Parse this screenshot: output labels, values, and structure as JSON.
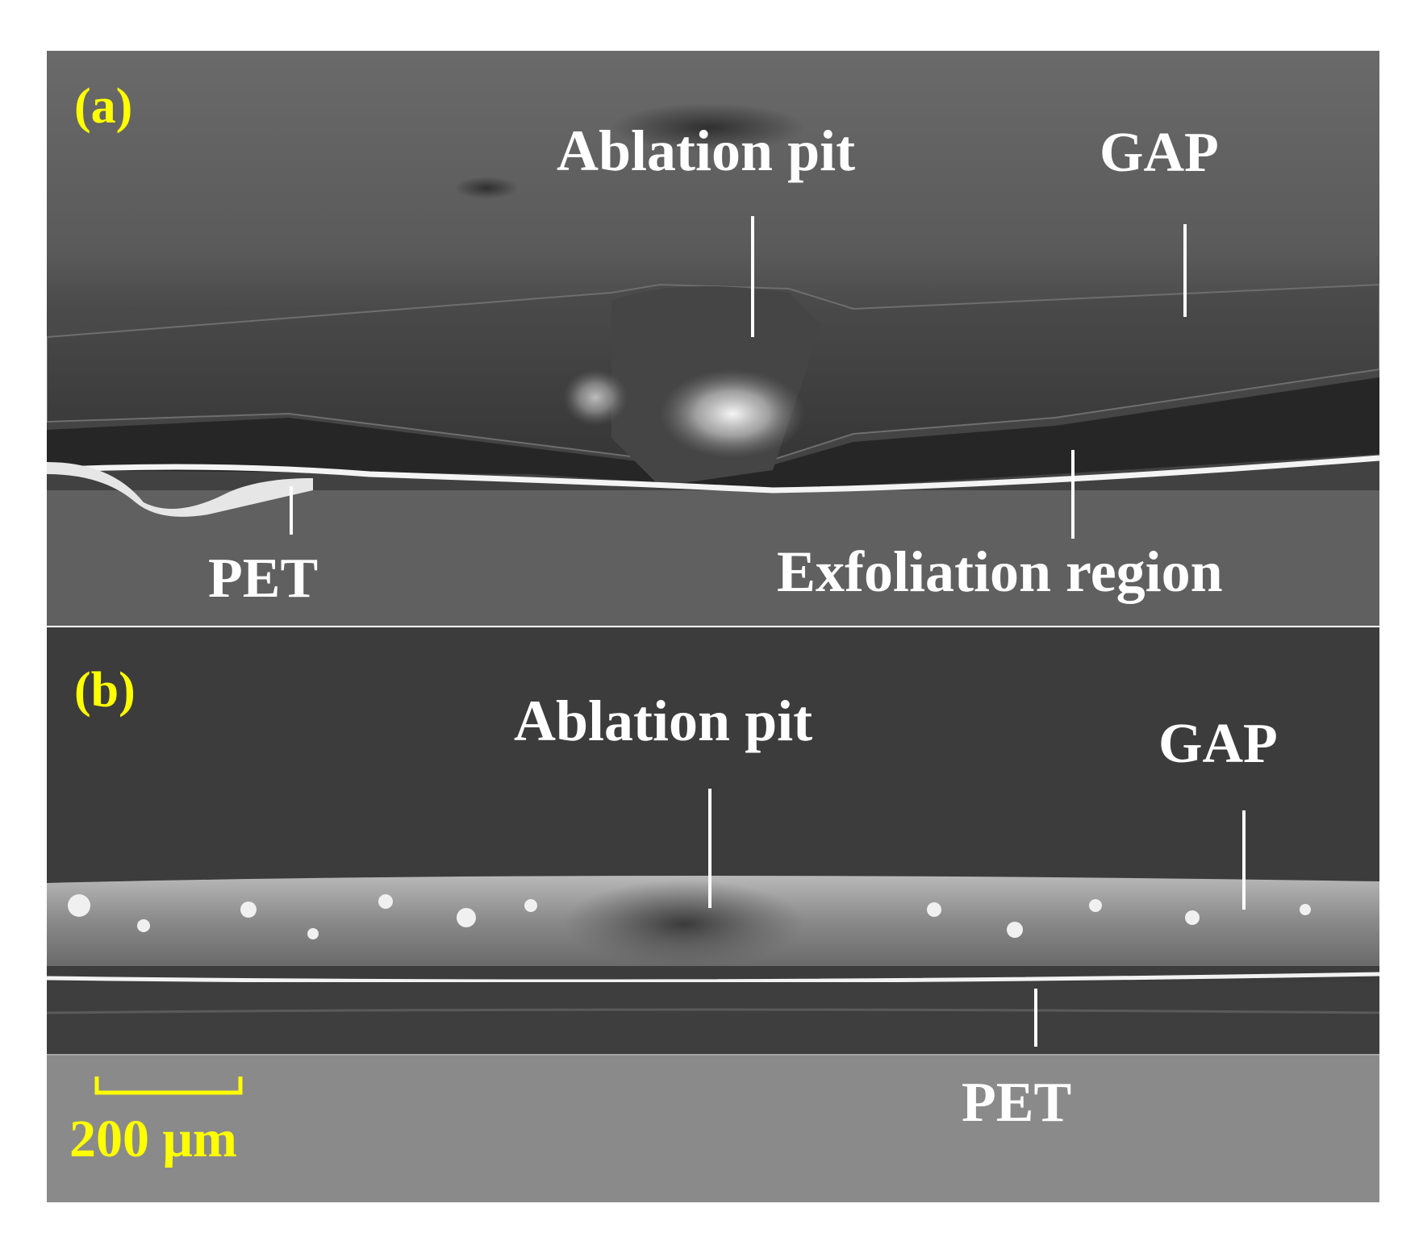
{
  "colors": {
    "label_yellow": "#ffff00",
    "label_white": "#ffffff",
    "background": "#ffffff"
  },
  "panel_a": {
    "letter": "(a)",
    "ablation_label": "Ablation pit",
    "gap_label": "GAP",
    "pet_label": "PET",
    "exfoliation_label": "Exfoliation region"
  },
  "panel_b": {
    "letter": "(b)",
    "ablation_label": "Ablation pit",
    "gap_label": "GAP",
    "pet_label": "PET",
    "scale_bar_label": "200 μm"
  }
}
